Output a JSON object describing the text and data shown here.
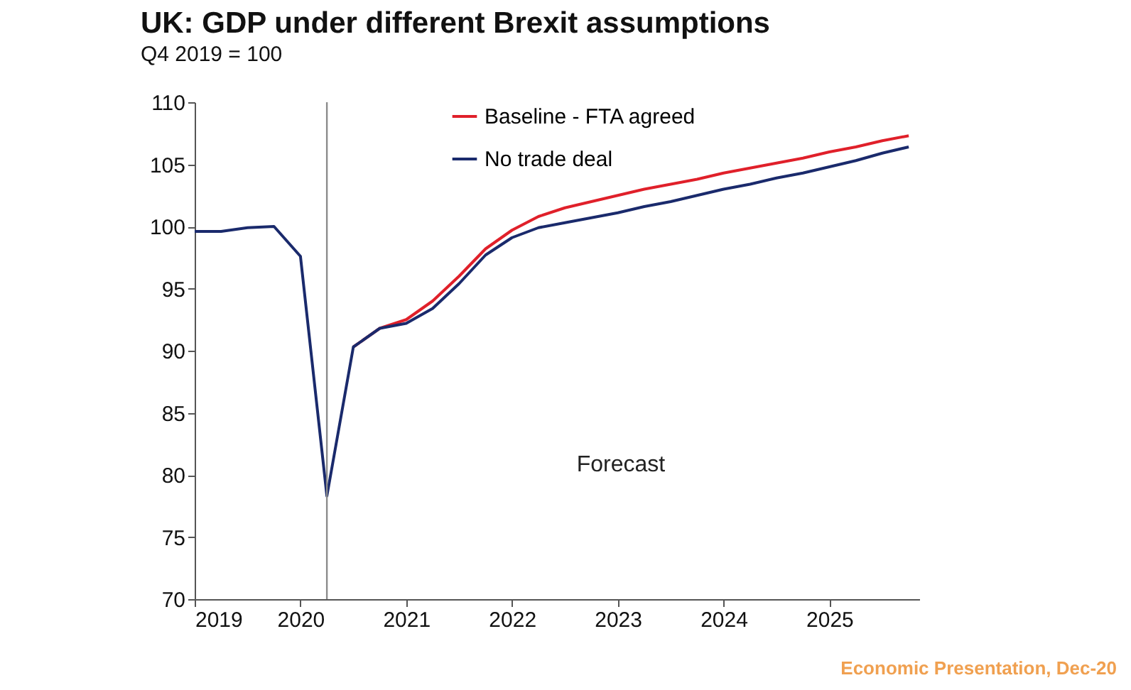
{
  "chart_data": {
    "type": "line",
    "title": "UK: GDP under different Brexit assumptions",
    "ylabel": "Q4 2019 = 100",
    "x": [
      2019,
      2019.25,
      2019.5,
      2019.75,
      2020,
      2020.25,
      2020.5,
      2020.75,
      2021,
      2021.25,
      2021.5,
      2021.75,
      2022,
      2022.25,
      2022.5,
      2022.75,
      2023,
      2023.25,
      2023.5,
      2023.75,
      2024,
      2024.25,
      2024.5,
      2024.75,
      2025,
      2025.25,
      2025.5,
      2025.75
    ],
    "series": [
      {
        "name": "Baseline - FTA agreed",
        "color": "#e0202a",
        "values": [
          null,
          null,
          null,
          null,
          null,
          null,
          90.3,
          91.8,
          92.5,
          94.0,
          96.0,
          98.2,
          99.7,
          100.8,
          101.5,
          102.0,
          102.5,
          103.0,
          103.4,
          103.8,
          104.3,
          104.7,
          105.1,
          105.5,
          106.0,
          106.4,
          106.9,
          107.3
        ]
      },
      {
        "name": "No trade deal",
        "color": "#1a2a6c",
        "values": [
          99.6,
          99.6,
          99.9,
          100.0,
          97.6,
          78.3,
          90.3,
          91.8,
          92.2,
          93.4,
          95.4,
          97.7,
          99.1,
          99.9,
          100.3,
          100.7,
          101.1,
          101.6,
          102.0,
          102.5,
          103.0,
          103.4,
          103.9,
          104.3,
          104.8,
          105.3,
          105.9,
          106.4
        ]
      }
    ],
    "xlim": [
      2019,
      2025.85
    ],
    "xticks": [
      2019,
      2020,
      2021,
      2022,
      2023,
      2024,
      2025
    ],
    "ylim": [
      70,
      110
    ],
    "yticks": [
      70,
      75,
      80,
      85,
      90,
      95,
      100,
      105,
      110
    ],
    "ref_lines": [
      {
        "axis": "x",
        "value": 2020.25,
        "color": "#8c8c8c"
      }
    ],
    "annotations": [
      "Forecast",
      "Economic Presentation, Dec-20"
    ],
    "legend": "top"
  }
}
